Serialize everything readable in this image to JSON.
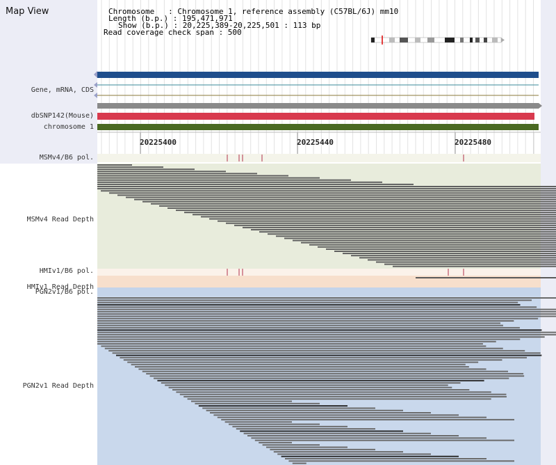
{
  "title": "Map View",
  "header": {
    "chromosome_line": "Chromosome   : Chromosome 1, reference assembly (C57BL/6J) mm10",
    "length_line": "Length (b.p.) : 195,471,971",
    "show_line": "Show (b.p.) : 20,225,389-20,225,501 : 113 bp",
    "coverage_line": "Read coverage check span : 500"
  },
  "tracks": {
    "gene": "Gene, mRNA, CDS",
    "dbsnp": "dbSNP142(Mouse)",
    "chromosome": "chromosome 1",
    "msm_pol": "MSMv4/B6 pol.",
    "msm_depth": "MSMv4 Read Depth",
    "hmi_pol": "HMIv1/B6 pol.",
    "hmi_depth": "HMIv1 Read Depth",
    "pgn_pol": "PGN2v1/B6 pol.",
    "pgn_depth": "PGN2v1 Read Depth"
  },
  "ruler": {
    "ticks": [
      "20225400",
      "20225440",
      "20225480"
    ]
  },
  "colors": {
    "gene_track": "#1f4e8c",
    "dbsnp_track": "#d83a4e",
    "chromosome_track": "#4a6a22",
    "msm_bg": "#e8ecdc",
    "hmi_bg": "#f7dfcc",
    "pgn_bg": "#c9d8ec",
    "read": "#5a5a5a"
  }
}
